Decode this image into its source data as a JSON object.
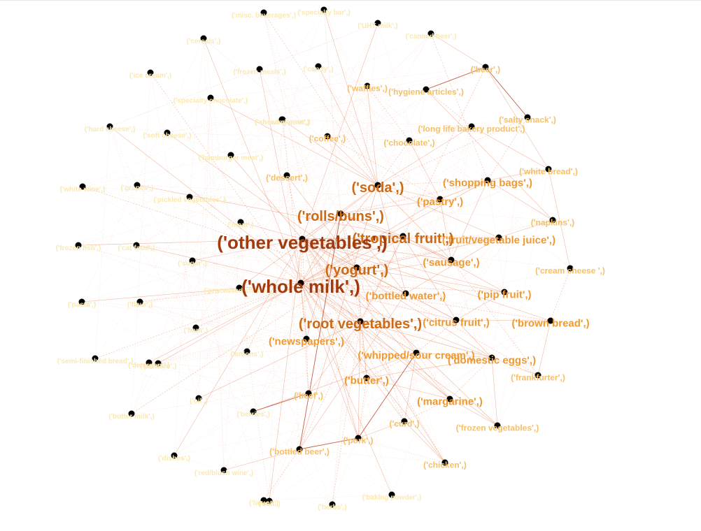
{
  "diagram": {
    "type": "network-graph",
    "colors": {
      "node": "#000000",
      "edge": "#e8825a",
      "edge_strong": "#b5391a",
      "tier_xl": "#a23a0c",
      "tier_lg": "#cf6a14",
      "tier_md": "#ef9a30",
      "tier_sm": "#f5c067",
      "tier_xs": "#fbe9b2"
    },
    "nodes": [
      {
        "id": "whole_milk",
        "label": "('whole milk',)",
        "tier": "xl"
      },
      {
        "id": "other_veg",
        "label": "('other vegetables',)",
        "tier": "xl"
      },
      {
        "id": "rolls",
        "label": "('rolls/buns',)",
        "tier": "lg"
      },
      {
        "id": "soda",
        "label": "('soda',)",
        "tier": "lg"
      },
      {
        "id": "yogurt",
        "label": "('yogurt',)",
        "tier": "lg"
      },
      {
        "id": "root_veg",
        "label": "('root vegetables',)",
        "tier": "lg"
      },
      {
        "id": "tropical",
        "label": "('tropical fruit',)",
        "tier": "lg"
      },
      {
        "id": "bottled_water",
        "label": "('bottled water',)",
        "tier": "md"
      },
      {
        "id": "sausage",
        "label": "('sausage',)",
        "tier": "md"
      },
      {
        "id": "shopping_bags",
        "label": "('shopping bags',)",
        "tier": "md"
      },
      {
        "id": "pastry",
        "label": "('pastry',)",
        "tier": "md"
      },
      {
        "id": "citrus",
        "label": "('citrus fruit',)",
        "tier": "md"
      },
      {
        "id": "fruit_juice",
        "label": "('fruit/vegetable juice',)",
        "tier": "md"
      },
      {
        "id": "pip",
        "label": "('pip fruit',)",
        "tier": "md"
      },
      {
        "id": "whipped",
        "label": "('whipped/sour cream',)",
        "tier": "md"
      },
      {
        "id": "dom_eggs",
        "label": "('domestic eggs',)",
        "tier": "md"
      },
      {
        "id": "butter",
        "label": "('butter',)",
        "tier": "md"
      },
      {
        "id": "margarine",
        "label": "('margarine',)",
        "tier": "md"
      },
      {
        "id": "newspapers",
        "label": "('newspapers',)",
        "tier": "md"
      },
      {
        "id": "brown_bread",
        "label": "('brown bread',)",
        "tier": "md"
      },
      {
        "id": "frozen_veg",
        "label": "('frozen vegetables',)",
        "tier": "sm"
      },
      {
        "id": "curd",
        "label": "('curd',)",
        "tier": "sm"
      },
      {
        "id": "pork",
        "label": "('pork',)",
        "tier": "sm"
      },
      {
        "id": "chicken",
        "label": "('chicken',)",
        "tier": "sm"
      },
      {
        "id": "frankfurter",
        "label": "('frankfurter',)",
        "tier": "sm"
      },
      {
        "id": "beef",
        "label": "('beef',)",
        "tier": "sm"
      },
      {
        "id": "napkins",
        "label": "('napkins',)",
        "tier": "sm"
      },
      {
        "id": "white_bread",
        "label": "('white bread',)",
        "tier": "sm"
      },
      {
        "id": "chocolate",
        "label": "('chocolate',)",
        "tier": "sm"
      },
      {
        "id": "cream_cheese",
        "label": "('cream cheese ',)",
        "tier": "sm"
      },
      {
        "id": "long_life",
        "label": "('long life bakery product',)",
        "tier": "sm"
      },
      {
        "id": "salty_snack",
        "label": "('salty snack',)",
        "tier": "sm"
      },
      {
        "id": "hygiene",
        "label": "('hygiene articles',)",
        "tier": "sm"
      },
      {
        "id": "waffles",
        "label": "('waffles',)",
        "tier": "sm"
      },
      {
        "id": "bottled_beer",
        "label": "('bottled beer',)",
        "tier": "sm"
      },
      {
        "id": "coffee",
        "label": "('coffee',)",
        "tier": "sm"
      },
      {
        "id": "dessert",
        "label": "('dessert',)",
        "tier": "sm"
      },
      {
        "id": "beer",
        "label": "('beer',)",
        "tier": "sm"
      },
      {
        "id": "canned_beer",
        "label": "('canned beer',)",
        "tier": "xs"
      },
      {
        "id": "uht",
        "label": "('UHT-milk',)",
        "tier": "xs"
      },
      {
        "id": "specialty_bar",
        "label": "('specialty bar',)",
        "tier": "xs"
      },
      {
        "id": "misc1",
        "label": "('misc. beverages',)",
        "tier": "xs"
      },
      {
        "id": "candy",
        "label": "('candy',)",
        "tier": "xs"
      },
      {
        "id": "frozen_meals",
        "label": "('frozen meals',)",
        "tier": "xs"
      },
      {
        "id": "sliced_cheese",
        "label": "('sliced cheese',)",
        "tier": "xs"
      },
      {
        "id": "specialty_choc",
        "label": "('specialty chocolate',)",
        "tier": "xs"
      },
      {
        "id": "hamburger",
        "label": "('hamburger meat',)",
        "tier": "xs"
      },
      {
        "id": "onions",
        "label": "('onions',)",
        "tier": "xs"
      },
      {
        "id": "oil",
        "label": "('oil',)",
        "tier": "xs"
      },
      {
        "id": "berries",
        "label": "('berries',)",
        "tier": "xs"
      },
      {
        "id": "ham",
        "label": "('ham',)",
        "tier": "xs"
      },
      {
        "id": "meat",
        "label": "('meat',)",
        "tier": "xs"
      },
      {
        "id": "grapes",
        "label": "('grapes',)",
        "tier": "xs"
      },
      {
        "id": "pickled",
        "label": "('pickled vegetables',)",
        "tier": "xs"
      },
      {
        "id": "cat_food",
        "label": "('cat food',)",
        "tier": "xs"
      },
      {
        "id": "frozen_fish",
        "label": "('frozen fish',)",
        "tier": "xs"
      },
      {
        "id": "white_wine",
        "label": "('white wine',)",
        "tier": "xs"
      },
      {
        "id": "soft_cheese",
        "label": "('soft cheese',)",
        "tier": "xs"
      },
      {
        "id": "hard_cheese",
        "label": "('hard cheese',)",
        "tier": "xs"
      },
      {
        "id": "ice_cream",
        "label": "('ice cream',)",
        "tier": "xs"
      },
      {
        "id": "cereals",
        "label": "('cereals',)",
        "tier": "xs"
      },
      {
        "id": "pasta",
        "label": "('pasta',)",
        "tier": "xs"
      },
      {
        "id": "flour",
        "label": "('flour',)",
        "tier": "xs"
      },
      {
        "id": "sugar",
        "label": "('sugar',)",
        "tier": "xs"
      },
      {
        "id": "detergent",
        "label": "('detergent',)",
        "tier": "xs"
      },
      {
        "id": "semi_finished",
        "label": "('semi-finished bread',)",
        "tier": "xs"
      },
      {
        "id": "red_wine",
        "label": "('red/blush wine',)",
        "tier": "xs"
      },
      {
        "id": "processed_cheese",
        "label": "('processed cheese',)",
        "tier": "xs"
      },
      {
        "id": "butter_milk",
        "label": "('butter milk',)",
        "tier": "xs"
      },
      {
        "id": "dishes",
        "label": "('dishes',)",
        "tier": "xs"
      },
      {
        "id": "salt",
        "label": "('salt',)",
        "tier": "xs"
      },
      {
        "id": "herbs",
        "label": "('herbs',)",
        "tier": "xs"
      },
      {
        "id": "baking",
        "label": "('baking powder',)",
        "tier": "xs"
      },
      {
        "id": "chewing",
        "label": "('chewing gum',)",
        "tier": "xs"
      },
      {
        "id": "liquor",
        "label": "('liquor',)",
        "tier": "xs"
      },
      {
        "id": "napkins2",
        "label": "('pet care',)",
        "tier": "xs"
      }
    ],
    "edges": [
      [
        "whole_milk",
        "other_veg"
      ],
      [
        "whole_milk",
        "rolls"
      ],
      [
        "whole_milk",
        "yogurt"
      ],
      [
        "whole_milk",
        "root_veg"
      ],
      [
        "whole_milk",
        "tropical"
      ],
      [
        "whole_milk",
        "soda"
      ],
      [
        "whole_milk",
        "bottled_water"
      ],
      [
        "whole_milk",
        "sausage"
      ],
      [
        "whole_milk",
        "pastry"
      ],
      [
        "whole_milk",
        "citrus"
      ],
      [
        "whole_milk",
        "whipped"
      ],
      [
        "whole_milk",
        "dom_eggs"
      ],
      [
        "whole_milk",
        "butter"
      ],
      [
        "whole_milk",
        "margarine"
      ],
      [
        "whole_milk",
        "newspapers"
      ],
      [
        "whole_milk",
        "brown_bread"
      ],
      [
        "whole_milk",
        "curd"
      ],
      [
        "whole_milk",
        "pork"
      ],
      [
        "whole_milk",
        "beef"
      ],
      [
        "whole_milk",
        "chicken"
      ],
      [
        "whole_milk",
        "frozen_veg"
      ],
      [
        "whole_milk",
        "pip"
      ],
      [
        "whole_milk",
        "fruit_juice"
      ],
      [
        "whole_milk",
        "shopping_bags"
      ],
      [
        "other_veg",
        "rolls"
      ],
      [
        "other_veg",
        "yogurt"
      ],
      [
        "other_veg",
        "root_veg"
      ],
      [
        "other_veg",
        "tropical"
      ],
      [
        "other_veg",
        "soda"
      ],
      [
        "other_veg",
        "citrus"
      ],
      [
        "other_veg",
        "whipped"
      ],
      [
        "other_veg",
        "pip"
      ],
      [
        "other_veg",
        "sausage"
      ],
      [
        "other_veg",
        "butter"
      ],
      [
        "other_veg",
        "dom_eggs"
      ],
      [
        "other_veg",
        "margarine"
      ],
      [
        "other_veg",
        "frankfurter"
      ],
      [
        "other_veg",
        "chicken"
      ],
      [
        "other_veg",
        "pork"
      ],
      [
        "other_veg",
        "beef"
      ],
      [
        "other_veg",
        "brown_bread"
      ],
      [
        "other_veg",
        "frozen_veg"
      ],
      [
        "other_veg",
        "curd"
      ],
      [
        "other_veg",
        "fruit_juice"
      ],
      [
        "rolls",
        "soda"
      ],
      [
        "rolls",
        "yogurt"
      ],
      [
        "rolls",
        "sausage"
      ],
      [
        "rolls",
        "pastry"
      ],
      [
        "rolls",
        "shopping_bags"
      ],
      [
        "rolls",
        "bottled_water"
      ],
      [
        "rolls",
        "tropical"
      ],
      [
        "rolls",
        "root_veg"
      ],
      [
        "rolls",
        "newspapers"
      ],
      [
        "yogurt",
        "tropical"
      ],
      [
        "yogurt",
        "root_veg"
      ],
      [
        "yogurt",
        "citrus"
      ],
      [
        "yogurt",
        "whipped"
      ],
      [
        "yogurt",
        "fruit_juice"
      ],
      [
        "yogurt",
        "pip"
      ],
      [
        "yogurt",
        "bottled_water"
      ],
      [
        "yogurt",
        "curd"
      ],
      [
        "yogurt",
        "butter"
      ],
      [
        "soda",
        "bottled_water"
      ],
      [
        "soda",
        "shopping_bags"
      ],
      [
        "soda",
        "pastry"
      ],
      [
        "soda",
        "sausage"
      ],
      [
        "soda",
        "chocolate"
      ],
      [
        "soda",
        "fruit_juice"
      ],
      [
        "soda",
        "long_life"
      ],
      [
        "soda",
        "salty_snack"
      ],
      [
        "root_veg",
        "citrus"
      ],
      [
        "root_veg",
        "tropical"
      ],
      [
        "root_veg",
        "whipped"
      ],
      [
        "root_veg",
        "beef"
      ],
      [
        "root_veg",
        "pork"
      ],
      [
        "root_veg",
        "butter"
      ],
      [
        "root_veg",
        "dom_eggs"
      ],
      [
        "root_veg",
        "margarine"
      ],
      [
        "root_veg",
        "chicken"
      ],
      [
        "tropical",
        "citrus"
      ],
      [
        "tropical",
        "pip"
      ],
      [
        "tropical",
        "fruit_juice"
      ],
      [
        "tropical",
        "sausage"
      ],
      [
        "citrus",
        "pip"
      ],
      [
        "citrus",
        "whipped"
      ],
      [
        "citrus",
        "dom_eggs"
      ],
      [
        "citrus",
        "brown_bread"
      ],
      [
        "whipped",
        "butter"
      ],
      [
        "whipped",
        "dom_eggs"
      ],
      [
        "whipped",
        "curd"
      ],
      [
        "whipped",
        "margarine"
      ],
      [
        "butter",
        "dom_eggs"
      ],
      [
        "butter",
        "margarine"
      ],
      [
        "butter",
        "pork"
      ],
      [
        "sausage",
        "pastry"
      ],
      [
        "sausage",
        "shopping_bags"
      ],
      [
        "sausage",
        "frankfurter"
      ],
      [
        "pastry",
        "shopping_bags"
      ],
      [
        "pastry",
        "chocolate"
      ],
      [
        "pastry",
        "coffee"
      ],
      [
        "shopping_bags",
        "white_bread"
      ],
      [
        "shopping_bags",
        "napkins"
      ],
      [
        "shopping_bags",
        "salty_snack"
      ],
      [
        "fruit_juice",
        "bottled_water"
      ],
      [
        "fruit_juice",
        "napkins"
      ],
      [
        "dom_eggs",
        "margarine"
      ],
      [
        "dom_eggs",
        "frankfurter"
      ],
      [
        "dom_eggs",
        "frozen_veg"
      ],
      [
        "brown_bread",
        "cream_cheese"
      ],
      [
        "brown_bread",
        "frankfurter"
      ],
      [
        "margarine",
        "frozen_veg"
      ],
      [
        "margarine",
        "curd"
      ],
      [
        "curd",
        "chicken"
      ],
      [
        "curd",
        "pork"
      ],
      [
        "beer",
        "hygiene"
      ],
      [
        "beer",
        "white_bread"
      ],
      [
        "beer",
        "canned_beer"
      ],
      [
        "beer",
        "bottled_beer"
      ],
      [
        "bottled_beer",
        "bottled_water"
      ],
      [
        "bottled_beer",
        "soda"
      ],
      [
        "waffles",
        "chocolate"
      ],
      [
        "waffles",
        "soda"
      ],
      [
        "hygiene",
        "napkins"
      ],
      [
        "hygiene",
        "long_life"
      ],
      [
        "coffee",
        "soda"
      ],
      [
        "dessert",
        "yogurt"
      ],
      [
        "dessert",
        "other_veg"
      ],
      [
        "white_bread",
        "cream_cheese"
      ],
      [
        "white_bread",
        "long_life"
      ],
      [
        "canned_beer",
        "shopping_bags"
      ],
      [
        "uht",
        "other_veg"
      ],
      [
        "specialty_bar",
        "soda"
      ],
      [
        "misc1",
        "soda"
      ],
      [
        "candy",
        "soda"
      ],
      [
        "frozen_meals",
        "whole_milk"
      ],
      [
        "sliced_cheese",
        "whole_milk"
      ],
      [
        "specialty_choc",
        "soda"
      ],
      [
        "hamburger",
        "other_veg"
      ],
      [
        "onions",
        "other_veg"
      ],
      [
        "oil",
        "root_veg"
      ],
      [
        "berries",
        "whipped"
      ],
      [
        "ham",
        "whole_milk"
      ],
      [
        "meat",
        "other_veg"
      ],
      [
        "grapes",
        "tropical"
      ],
      [
        "pickled",
        "whole_milk"
      ],
      [
        "cat_food",
        "whole_milk"
      ],
      [
        "frozen_fish",
        "other_veg"
      ],
      [
        "white_wine",
        "bottled_water"
      ],
      [
        "soft_cheese",
        "yogurt"
      ],
      [
        "hard_cheese",
        "root_veg"
      ],
      [
        "ice_cream",
        "whole_milk"
      ],
      [
        "cereals",
        "whole_milk"
      ],
      [
        "pasta",
        "whole_milk"
      ],
      [
        "flour",
        "whole_milk"
      ],
      [
        "sugar",
        "other_veg"
      ],
      [
        "detergent",
        "whole_milk"
      ],
      [
        "semi_finished",
        "whole_milk"
      ],
      [
        "red_wine",
        "bottled_beer"
      ],
      [
        "processed_cheese",
        "rolls"
      ],
      [
        "butter_milk",
        "yogurt"
      ],
      [
        "dishes",
        "other_veg"
      ],
      [
        "salt",
        "other_veg"
      ],
      [
        "herbs",
        "root_veg"
      ],
      [
        "baking",
        "whole_milk"
      ],
      [
        "chewing",
        "soda"
      ],
      [
        "liquor",
        "bottled_beer"
      ],
      [
        "napkins2",
        "whole_milk"
      ]
    ],
    "strong_edges": [
      [
        "beer",
        "hygiene"
      ],
      [
        "beer",
        "salty_snack"
      ],
      [
        "whipped",
        "pork"
      ],
      [
        "pork",
        "bottled_beer"
      ],
      [
        "rolls",
        "bottled_beer"
      ],
      [
        "beef",
        "berries"
      ]
    ]
  }
}
